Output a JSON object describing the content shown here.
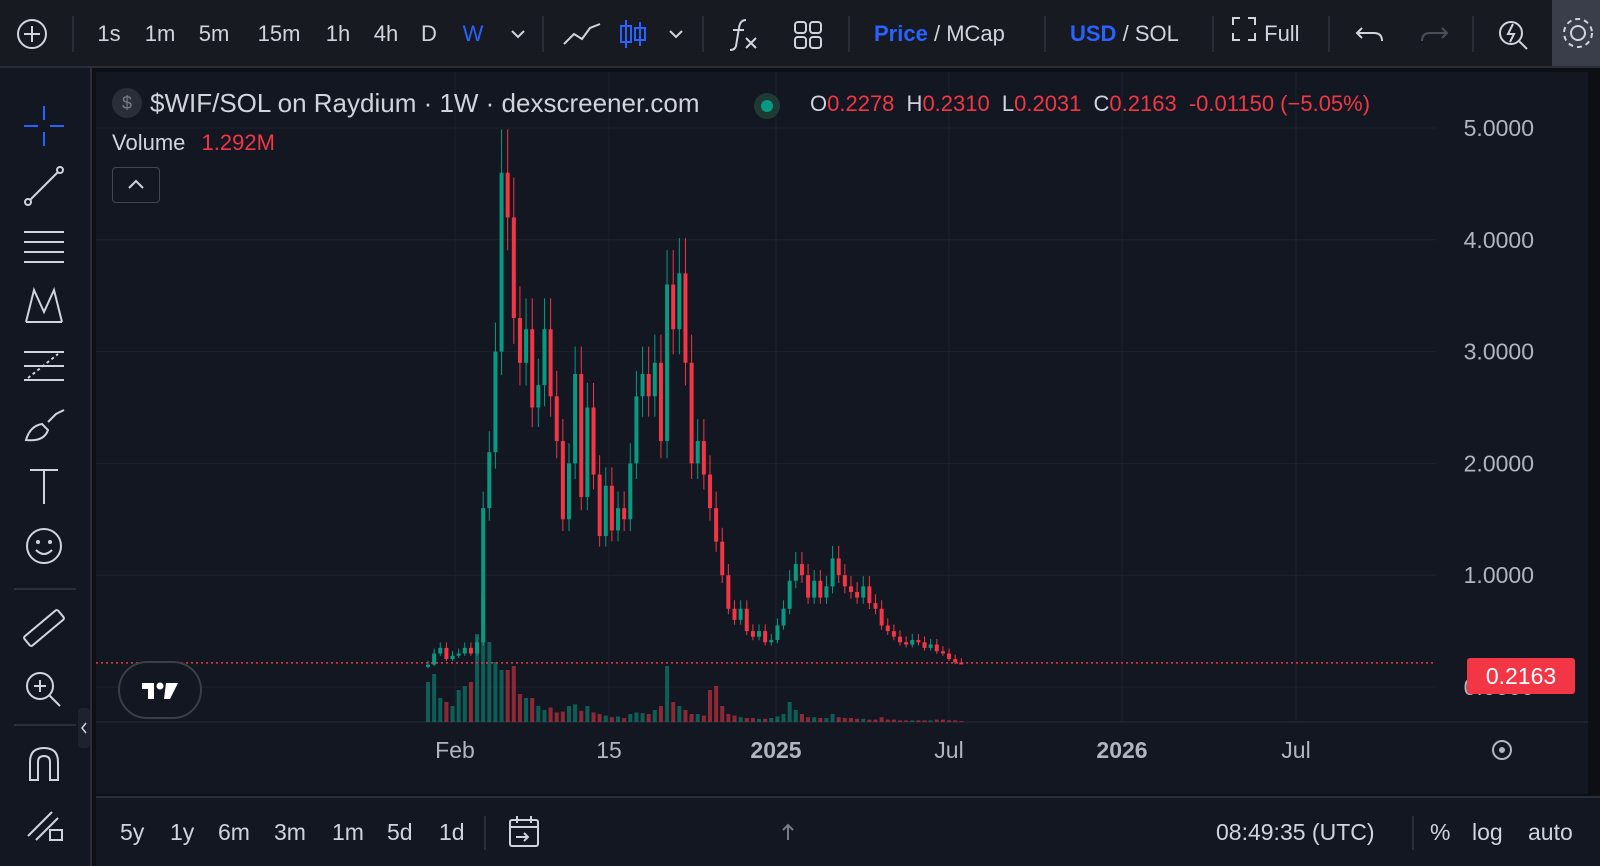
{
  "toolbar": {
    "timeframes": [
      "1s",
      "1m",
      "5m",
      "15m",
      "1h",
      "4h",
      "D",
      "W"
    ],
    "active_timeframe": "W",
    "price_label": "Price",
    "mcap_label": "MCap",
    "usd_label": "USD",
    "sol_label": "SOL",
    "slash": "/",
    "full_label": "Full"
  },
  "legend": {
    "title": "$WIF/SOL on Raydium · 1W · dexscreener.com",
    "o_key": "O",
    "o_val": "0.2278",
    "h_key": "H",
    "h_val": "0.2310",
    "l_key": "L",
    "l_val": "0.2031",
    "c_key": "C",
    "c_val": "0.2163",
    "change": "-0.01150 (−5.05%)",
    "volume_label": "Volume",
    "volume_value": "1.292M"
  },
  "price_axis": {
    "ticks": [
      "5.0000",
      "4.0000",
      "3.0000",
      "2.0000",
      "1.0000",
      "0.0000"
    ],
    "current_price": "0.2163"
  },
  "time_axis": {
    "labels": [
      "Feb",
      "15",
      "2025",
      "Jul",
      "2026",
      "Jul"
    ]
  },
  "bottombar": {
    "ranges": [
      "5y",
      "1y",
      "6m",
      "3m",
      "1m",
      "5d",
      "1d"
    ],
    "clock": "08:49:35 (UTC)",
    "percent": "%",
    "log": "log",
    "auto": "auto"
  },
  "colors": {
    "up": "#089981",
    "down": "#f23645",
    "accent": "#2962ff",
    "background": "#131722"
  },
  "chart_data": {
    "type": "candlestick",
    "title": "$WIF/SOL on Raydium · 1W · dexscreener.com",
    "ylim": [
      0,
      5.2
    ],
    "x_tick_labels": [
      "Feb",
      "15",
      "2025",
      "Jul",
      "2026",
      "Jul"
    ],
    "grid": true,
    "current_price": 0.2163,
    "ohlc_close": [
      0.2,
      0.3,
      0.35,
      0.25,
      0.28,
      0.3,
      0.35,
      0.3,
      0.4,
      1.6,
      2.1,
      3.0,
      4.6,
      4.2,
      3.3,
      2.9,
      3.2,
      2.5,
      2.7,
      3.2,
      2.6,
      2.2,
      1.5,
      2.0,
      2.8,
      1.7,
      2.5,
      1.9,
      1.35,
      1.8,
      1.4,
      1.6,
      1.5,
      2.0,
      2.6,
      2.8,
      2.6,
      2.9,
      2.2,
      3.6,
      3.2,
      3.7,
      2.9,
      2.0,
      2.2,
      1.9,
      1.6,
      1.3,
      1.0,
      0.7,
      0.6,
      0.7,
      0.5,
      0.45,
      0.5,
      0.4,
      0.42,
      0.55,
      0.7,
      0.95,
      1.1,
      1.0,
      0.8,
      0.95,
      0.8,
      0.9,
      1.15,
      1.0,
      0.9,
      0.85,
      0.8,
      0.9,
      0.75,
      0.7,
      0.55,
      0.5,
      0.45,
      0.4,
      0.38,
      0.42,
      0.4,
      0.35,
      0.38,
      0.32,
      0.3,
      0.25,
      0.22,
      0.2163
    ],
    "volume_relative": [
      0.5,
      0.6,
      0.3,
      0.25,
      0.2,
      0.4,
      0.45,
      0.5,
      1.1,
      1.6,
      1.0,
      0.75,
      0.65,
      0.65,
      0.7,
      0.35,
      0.3,
      0.3,
      0.2,
      0.15,
      0.18,
      0.12,
      0.13,
      0.2,
      0.22,
      0.14,
      0.2,
      0.12,
      0.1,
      0.08,
      0.06,
      0.07,
      0.05,
      0.1,
      0.12,
      0.11,
      0.1,
      0.15,
      0.2,
      0.7,
      0.25,
      0.2,
      0.15,
      0.1,
      0.1,
      0.08,
      0.4,
      0.45,
      0.2,
      0.1,
      0.08,
      0.06,
      0.05,
      0.05,
      0.04,
      0.04,
      0.05,
      0.07,
      0.1,
      0.25,
      0.15,
      0.1,
      0.06,
      0.06,
      0.05,
      0.05,
      0.1,
      0.06,
      0.05,
      0.05,
      0.04,
      0.04,
      0.03,
      0.03,
      0.06,
      0.03,
      0.03,
      0.02,
      0.02,
      0.02,
      0.02,
      0.02,
      0.02,
      0.03,
      0.03,
      0.02,
      0.02,
      0.01
    ]
  }
}
